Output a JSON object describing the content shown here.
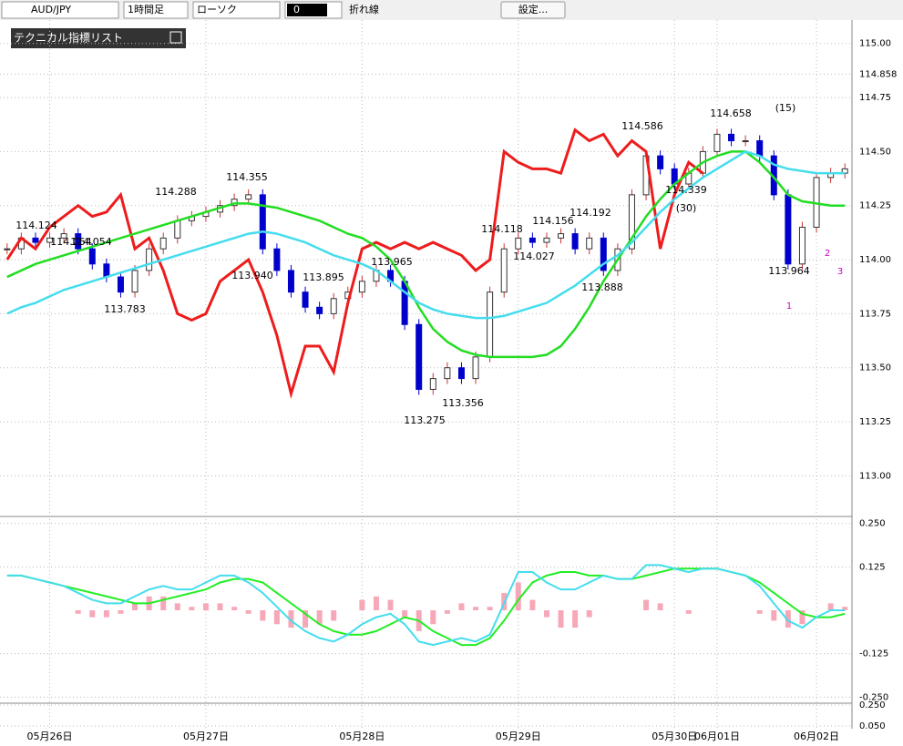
{
  "toolbar": {
    "symbol": "AUD/JPY",
    "timeframe": "1時間足",
    "chart_style": "ローソク",
    "overlay": "0",
    "line_style": "折れ線",
    "settings": "設定..."
  },
  "panel": {
    "title": "テクニカル指標リスト"
  },
  "chart_data": [
    {
      "type": "candlestick",
      "categories": [
        null,
        null,
        null,
        "05月26日",
        null,
        null,
        null,
        null,
        null,
        null,
        null,
        null,
        null,
        null,
        "05月27日",
        null,
        null,
        null,
        null,
        null,
        null,
        null,
        null,
        null,
        null,
        "05月28日",
        null,
        null,
        null,
        null,
        null,
        null,
        null,
        null,
        null,
        null,
        "05月29日",
        null,
        null,
        null,
        null,
        null,
        null,
        null,
        null,
        null,
        null,
        "05月30日",
        null,
        null,
        "06月01日",
        null,
        null,
        null,
        null,
        null,
        null,
        "06月02日",
        null,
        null
      ],
      "series": [
        {
          "kind": "candle",
          "color": "#0000cc",
          "values": [
            114.05,
            114.1,
            114.08,
            114.1,
            114.12,
            114.05,
            113.98,
            113.92,
            113.85,
            113.95,
            114.05,
            114.1,
            114.18,
            114.2,
            114.22,
            114.25,
            114.28,
            114.3,
            114.05,
            113.95,
            113.85,
            113.78,
            113.75,
            113.82,
            113.85,
            113.9,
            113.95,
            113.9,
            113.7,
            113.4,
            113.45,
            113.5,
            113.45,
            113.55,
            113.85,
            114.05,
            114.1,
            114.08,
            114.1,
            114.12,
            114.05,
            114.1,
            113.95,
            114.05,
            114.3,
            114.48,
            114.42,
            114.35,
            114.4,
            114.5,
            114.58,
            114.55,
            114.55,
            114.48,
            114.3,
            113.98,
            114.15,
            114.38,
            114.4,
            114.42
          ]
        },
        {
          "kind": "line",
          "color": "#ee1c1c",
          "values": [
            114.0,
            114.1,
            114.05,
            114.15,
            114.2,
            114.25,
            114.2,
            114.22,
            114.3,
            114.05,
            114.1,
            113.95,
            113.75,
            113.72,
            113.75,
            113.9,
            113.95,
            114.0,
            113.85,
            113.65,
            113.38,
            113.6,
            113.6,
            113.48,
            113.8,
            114.05,
            114.08,
            114.05,
            114.08,
            114.05,
            114.08,
            114.05,
            114.02,
            113.95,
            114.0,
            114.5,
            114.45,
            114.42,
            114.42,
            114.4,
            114.6,
            114.55,
            114.58,
            114.48,
            114.55,
            114.5,
            114.05,
            114.3,
            114.45,
            114.4,
            null,
            null,
            null,
            null,
            null,
            null,
            null,
            null,
            null,
            null
          ]
        },
        {
          "kind": "line",
          "color": "#22dd22",
          "values": [
            113.92,
            113.95,
            113.98,
            114.0,
            114.02,
            114.04,
            114.06,
            114.08,
            114.1,
            114.12,
            114.14,
            114.16,
            114.18,
            114.2,
            114.22,
            114.24,
            114.26,
            114.26,
            114.25,
            114.24,
            114.22,
            114.2,
            114.18,
            114.15,
            114.12,
            114.1,
            114.06,
            114.0,
            113.9,
            113.78,
            113.68,
            113.62,
            113.58,
            113.56,
            113.55,
            113.55,
            113.55,
            113.55,
            113.56,
            113.6,
            113.68,
            113.78,
            113.9,
            114.0,
            114.1,
            114.2,
            114.28,
            114.35,
            114.4,
            114.45,
            114.48,
            114.5,
            114.5,
            114.45,
            114.38,
            114.3,
            114.27,
            114.26,
            114.25,
            114.25
          ]
        },
        {
          "kind": "line",
          "color": "#44ddee",
          "values": [
            113.75,
            113.78,
            113.8,
            113.83,
            113.86,
            113.88,
            113.9,
            113.92,
            113.94,
            113.96,
            113.98,
            114.0,
            114.02,
            114.04,
            114.06,
            114.08,
            114.1,
            114.12,
            114.13,
            114.12,
            114.1,
            114.08,
            114.05,
            114.02,
            114.0,
            113.98,
            113.95,
            113.9,
            113.85,
            113.8,
            113.77,
            113.75,
            113.74,
            113.73,
            113.73,
            113.74,
            113.76,
            113.78,
            113.8,
            113.84,
            113.88,
            113.93,
            113.98,
            114.02,
            114.08,
            114.15,
            114.22,
            114.28,
            114.33,
            114.38,
            114.42,
            114.46,
            114.5,
            114.48,
            114.44,
            114.42,
            114.41,
            114.4,
            114.4,
            114.4
          ]
        }
      ],
      "ylim": [
        112.85,
        115.1
      ],
      "yticks": [
        {
          "value": 113,
          "label": "113.00"
        },
        {
          "value": 113.25,
          "label": "113.25"
        },
        {
          "value": 113.5,
          "label": "113.50"
        },
        {
          "value": 113.75,
          "label": "113.75"
        },
        {
          "value": 114,
          "label": "114.00"
        },
        {
          "value": 114.25,
          "label": "114.25"
        },
        {
          "value": 114.5,
          "label": "114.50"
        },
        {
          "value": 114.75,
          "label": "114.75"
        },
        {
          "value": 114.858,
          "label": "114.858"
        },
        {
          "value": 115,
          "label": "115.00"
        }
      ],
      "grid": true,
      "annotations": [
        "114.124",
        "114.054",
        "114.054",
        "113.783",
        "114.288",
        "114.355",
        "113.940",
        "113.895",
        "113.965",
        "113.275",
        "113.356",
        "114.118",
        "114.156",
        "114.027",
        "114.192",
        "113.888",
        "114.586",
        "114.339",
        "(30)",
        "114.658",
        "(15)",
        "113.964",
        "1",
        "2",
        "3"
      ]
    },
    {
      "type": "oscillator",
      "histogram": {
        "color": "#f7a8b8",
        "values": [
          0,
          0,
          0,
          0,
          0,
          -0.01,
          -0.02,
          -0.02,
          -0.01,
          0.02,
          0.04,
          0.04,
          0.02,
          0.01,
          0.02,
          0.02,
          0.01,
          -0.01,
          -0.03,
          -0.04,
          -0.05,
          -0.05,
          -0.04,
          -0.03,
          0.0,
          0.03,
          0.04,
          0.03,
          -0.02,
          -0.06,
          -0.04,
          -0.01,
          0.02,
          0.01,
          0.01,
          0.05,
          0.08,
          0.03,
          -0.02,
          -0.05,
          -0.05,
          -0.02,
          0.0,
          0.0,
          0.0,
          0.03,
          0.02,
          0.0,
          -0.01,
          0.0,
          0.0,
          0.0,
          0.0,
          -0.01,
          -0.03,
          -0.05,
          -0.04,
          0.0,
          0.02,
          0.01
        ]
      },
      "series": [
        {
          "color": "#22ee22",
          "values": [
            0.1,
            0.1,
            0.09,
            0.08,
            0.07,
            0.06,
            0.05,
            0.04,
            0.03,
            0.02,
            0.02,
            0.03,
            0.04,
            0.05,
            0.06,
            0.08,
            0.09,
            0.09,
            0.08,
            0.05,
            0.02,
            -0.01,
            -0.04,
            -0.06,
            -0.07,
            -0.07,
            -0.06,
            -0.04,
            -0.02,
            -0.03,
            -0.06,
            -0.08,
            -0.1,
            -0.1,
            -0.08,
            -0.03,
            0.03,
            0.08,
            0.1,
            0.11,
            0.11,
            0.1,
            0.1,
            0.09,
            0.09,
            0.1,
            0.11,
            0.12,
            0.12,
            0.12,
            0.12,
            0.11,
            0.1,
            0.08,
            0.05,
            0.02,
            -0.01,
            -0.02,
            -0.02,
            -0.01
          ]
        },
        {
          "color": "#44ddee",
          "values": [
            0.1,
            0.1,
            0.09,
            0.08,
            0.07,
            0.05,
            0.03,
            0.02,
            0.02,
            0.04,
            0.06,
            0.07,
            0.06,
            0.06,
            0.08,
            0.1,
            0.1,
            0.08,
            0.05,
            0.01,
            -0.03,
            -0.06,
            -0.08,
            -0.09,
            -0.07,
            -0.04,
            -0.02,
            -0.01,
            -0.04,
            -0.09,
            -0.1,
            -0.09,
            -0.08,
            -0.09,
            -0.07,
            0.02,
            0.11,
            0.11,
            0.08,
            0.06,
            0.06,
            0.08,
            0.1,
            0.09,
            0.09,
            0.13,
            0.13,
            0.12,
            0.11,
            0.12,
            0.12,
            0.11,
            0.1,
            0.07,
            0.02,
            -0.03,
            -0.05,
            -0.02,
            0.0,
            0.0
          ]
        }
      ],
      "ylim": [
        -0.27,
        0.27
      ],
      "yticks": [
        {
          "value": 0.25,
          "label": "0.250"
        },
        {
          "value": 0.125,
          "label": "0.125"
        },
        {
          "value": -0.125,
          "label": "-0.125"
        },
        {
          "value": -0.25,
          "label": "-0.250"
        }
      ]
    },
    {
      "type": "oscillator",
      "ylim": [
        0.024,
        0.267
      ],
      "yticks": [
        {
          "value": 0.25,
          "label": "0.250"
        },
        {
          "value": 0.05,
          "label": "0.050"
        }
      ]
    }
  ]
}
